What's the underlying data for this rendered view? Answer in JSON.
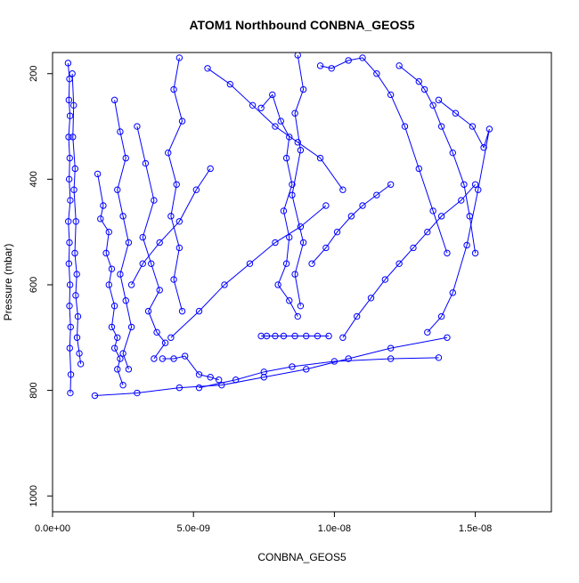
{
  "chart_data": {
    "type": "scatter",
    "title": "ATOM1 Northbound CONBNA_GEOS5",
    "xlabel": "CONBNA_GEOS5",
    "ylabel": "Pressure (mbar)",
    "xlim": [
      0,
      1.77e-08
    ],
    "ylim": [
      160,
      1030
    ],
    "y_reversed": true,
    "x_ticks": [
      0,
      5e-09,
      1e-08,
      1.5e-08
    ],
    "x_tick_labels": [
      "0.0e+00",
      "5.0e-09",
      "1.0e-08",
      "1.5e-08"
    ],
    "y_ticks": [
      200,
      400,
      600,
      800,
      1000
    ],
    "y_tick_labels": [
      "200",
      "400",
      "600",
      "800",
      "1000"
    ],
    "series_color": "#0000ff",
    "marker": "open-circle",
    "connect_points": true,
    "series": [
      {
        "x": [
          5.5e-10,
          6e-10,
          5.8e-10,
          6.2e-10,
          5.7e-10,
          6.1e-10,
          5.9e-10,
          6.3e-10,
          5.6e-10,
          6e-10,
          5.8e-10,
          6.2e-10,
          6e-10,
          6.4e-10,
          6.1e-10,
          6.5e-10,
          6.3e-10
        ],
        "y": [
          180,
          210,
          250,
          280,
          320,
          360,
          400,
          440,
          480,
          520,
          560,
          600,
          640,
          680,
          720,
          770,
          805
        ]
      },
      {
        "x": [
          7e-10,
          7.5e-10,
          7.2e-10,
          8e-10,
          7.6e-10,
          8.3e-10,
          7.9e-10,
          8.6e-10,
          8.2e-10,
          9e-10,
          8.7e-10,
          9.5e-10,
          1e-09
        ],
        "y": [
          200,
          260,
          320,
          380,
          420,
          480,
          540,
          580,
          620,
          660,
          700,
          730,
          750
        ]
      },
      {
        "x": [
          1.6e-09,
          1.8e-09,
          1.7e-09,
          2e-09,
          1.9e-09,
          2.1e-09,
          2e-09,
          2.2e-09,
          2.1e-09,
          2.3e-09,
          2.2e-09,
          2.4e-09,
          2.3e-09,
          2.5e-09
        ],
        "y": [
          390,
          450,
          475,
          500,
          540,
          570,
          600,
          640,
          680,
          700,
          720,
          740,
          760,
          790
        ]
      },
      {
        "x": [
          2.2e-09,
          2.4e-09,
          2.6e-09,
          2.3e-09,
          2.5e-09,
          2.7e-09,
          2.4e-09,
          2.6e-09,
          2.8e-09,
          2.5e-09,
          2.7e-09
        ],
        "y": [
          250,
          310,
          360,
          420,
          470,
          520,
          580,
          630,
          680,
          730,
          760
        ]
      },
      {
        "x": [
          3e-09,
          3.3e-09,
          3.6e-09,
          3.2e-09,
          3.5e-09,
          3.8e-09,
          3.4e-09,
          3.7e-09,
          4e-09,
          3.6e-09
        ],
        "y": [
          300,
          370,
          440,
          510,
          560,
          610,
          650,
          690,
          710,
          740
        ]
      },
      {
        "x": [
          4.5e-09,
          4.3e-09,
          4.6e-09,
          4.1e-09,
          4.4e-09,
          4.2e-09,
          4.5e-09,
          4.3e-09,
          4.6e-09
        ],
        "y": [
          170,
          230,
          290,
          350,
          410,
          470,
          530,
          590,
          650
        ]
      },
      {
        "x": [
          3.9e-09,
          4.3e-09,
          4.7e-09,
          5.2e-09,
          5.6e-09,
          5.9e-09
        ],
        "y": [
          740,
          740,
          735,
          770,
          775,
          780
        ]
      },
      {
        "x": [
          5.2e-09,
          6.5e-09,
          7.5e-09,
          8.5e-09,
          1e-08,
          1.2e-08,
          1.37e-08
        ],
        "y": [
          795,
          780,
          765,
          755,
          745,
          740,
          738
        ]
      },
      {
        "x": [
          1.5e-09,
          3e-09,
          4.5e-09,
          6e-09,
          7.5e-09,
          9e-09,
          1.05e-08,
          1.2e-08,
          1.4e-08
        ],
        "y": [
          810,
          805,
          795,
          790,
          775,
          760,
          740,
          720,
          700
        ]
      },
      {
        "x": [
          7.4e-09,
          7.6e-09,
          7.9e-09,
          8.2e-09,
          8.6e-09,
          9e-09,
          9.4e-09,
          9.8e-09
        ],
        "y": [
          697,
          697,
          697,
          697,
          697,
          697,
          697,
          697
        ]
      },
      {
        "x": [
          7.4e-09,
          7.8e-09,
          8.1e-09,
          8.4e-09,
          8.3e-09,
          8.5e-09,
          8.2e-09,
          8.4e-09,
          8.3e-09,
          8e-09,
          8.4e-09,
          8.7e-09
        ],
        "y": [
          265,
          240,
          290,
          320,
          360,
          410,
          460,
          510,
          560,
          600,
          630,
          660
        ]
      },
      {
        "x": [
          8.7e-09,
          8.9e-09,
          8.6e-09,
          8.8e-09,
          8.5e-09,
          8.9e-09,
          8.6e-09,
          8.8e-09
        ],
        "y": [
          165,
          230,
          275,
          345,
          430,
          520,
          580,
          640
        ]
      },
      {
        "x": [
          9.5e-09,
          9.9e-09,
          1.05e-08,
          1.1e-08,
          1.15e-08,
          1.2e-08,
          1.25e-08,
          1.3e-08,
          1.35e-08,
          1.4e-08
        ],
        "y": [
          185,
          190,
          175,
          170,
          200,
          240,
          300,
          380,
          460,
          540
        ]
      },
      {
        "x": [
          1.23e-08,
          1.3e-08,
          1.32e-08,
          1.35e-08,
          1.38e-08,
          1.42e-08,
          1.46e-08,
          1.48e-08,
          1.5e-08
        ],
        "y": [
          185,
          215,
          230,
          260,
          300,
          350,
          410,
          470,
          540
        ]
      },
      {
        "x": [
          1.37e-08,
          1.43e-08,
          1.49e-08,
          1.53e-08,
          1.55e-08,
          1.51e-08,
          1.47e-08,
          1.42e-08,
          1.38e-08,
          1.33e-08
        ],
        "y": [
          250,
          275,
          300,
          340,
          305,
          420,
          525,
          615,
          660,
          690
        ]
      },
      {
        "x": [
          1.03e-08,
          1.08e-08,
          1.13e-08,
          1.18e-08,
          1.23e-08,
          1.28e-08,
          1.33e-08,
          1.38e-08,
          1.45e-08,
          1.5e-08
        ],
        "y": [
          700,
          660,
          625,
          590,
          560,
          530,
          500,
          470,
          440,
          410
        ]
      },
      {
        "x": [
          9.2e-09,
          9.7e-09,
          1.01e-08,
          1.06e-08,
          1.1e-08,
          1.15e-08,
          1.2e-08
        ],
        "y": [
          560,
          530,
          500,
          470,
          450,
          430,
          410
        ]
      },
      {
        "x": [
          5.5e-09,
          6.3e-09,
          7.1e-09,
          7.9e-09,
          8.7e-09,
          9.5e-09,
          1.03e-08
        ],
        "y": [
          190,
          220,
          260,
          300,
          330,
          360,
          420
        ]
      },
      {
        "x": [
          4.2e-09,
          5.2e-09,
          6.1e-09,
          7e-09,
          7.9e-09,
          8.8e-09,
          9.7e-09
        ],
        "y": [
          700,
          650,
          600,
          560,
          520,
          490,
          450
        ]
      },
      {
        "x": [
          2.8e-09,
          3.2e-09,
          3.8e-09,
          4.5e-09,
          5.1e-09,
          5.6e-09
        ],
        "y": [
          600,
          560,
          520,
          480,
          420,
          380
        ]
      }
    ]
  }
}
